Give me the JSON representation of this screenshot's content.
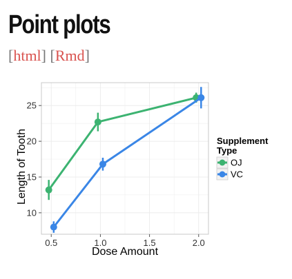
{
  "page": {
    "title": "Point plots",
    "links": [
      {
        "label": "html"
      },
      {
        "label": "Rmd"
      }
    ]
  },
  "colors": {
    "OJ": "#3cb371",
    "VC": "#3a86e6",
    "grid": "#ececec",
    "panel_border": "#c8c8c8"
  },
  "chart_data": {
    "type": "line",
    "xlabel": "Dose Amount",
    "ylabel": "Length of Tooth",
    "xlim": [
      0.4,
      2.1
    ],
    "ylim": [
      7.0,
      28.2
    ],
    "xticks": [
      0.5,
      1.0,
      1.5,
      2.0
    ],
    "xtick_labels": [
      "0.5",
      "1.0",
      "1.5",
      "2.0"
    ],
    "yticks": [
      10,
      15,
      20,
      25
    ],
    "ytick_labels": [
      "10",
      "15",
      "20",
      "25"
    ],
    "grid": true,
    "legend": {
      "title_line1": "Supplement",
      "title_line2": "Type",
      "position": "right"
    },
    "x": [
      0.5,
      1.0,
      2.0
    ],
    "series": [
      {
        "name": "OJ",
        "color": "#3cb371",
        "dodge": -0.025,
        "y": [
          13.2,
          22.7,
          26.1
        ],
        "err_low": [
          11.8,
          21.4,
          25.4
        ],
        "err_high": [
          14.6,
          24.0,
          26.8
        ]
      },
      {
        "name": "VC",
        "color": "#3a86e6",
        "dodge": 0.025,
        "y": [
          8.0,
          16.8,
          26.1
        ],
        "err_low": [
          7.2,
          15.9,
          24.6
        ],
        "err_high": [
          8.8,
          17.7,
          27.6
        ]
      }
    ]
  }
}
